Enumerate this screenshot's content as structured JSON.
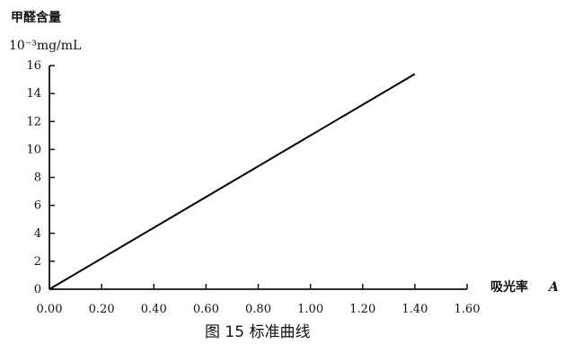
{
  "chart_data": {
    "type": "line",
    "ylabel": "甲醛含量",
    "yunit": "10⁻³mg/mL",
    "xlabel": "吸光率",
    "xlabel_symbol": "A",
    "caption": "图 15 标准曲线",
    "xlim": [
      0,
      1.6
    ],
    "ylim": [
      0,
      16
    ],
    "x_ticks": [
      "0.00",
      "0.20",
      "0.40",
      "0.60",
      "0.80",
      "1.00",
      "1.20",
      "1.40",
      "1.60"
    ],
    "y_ticks": [
      "0",
      "2",
      "4",
      "6",
      "8",
      "10",
      "12",
      "14",
      "16"
    ],
    "grid": false,
    "series": [
      {
        "x": [
          0.0,
          1.4
        ],
        "y": [
          0.0,
          15.4
        ]
      }
    ]
  }
}
